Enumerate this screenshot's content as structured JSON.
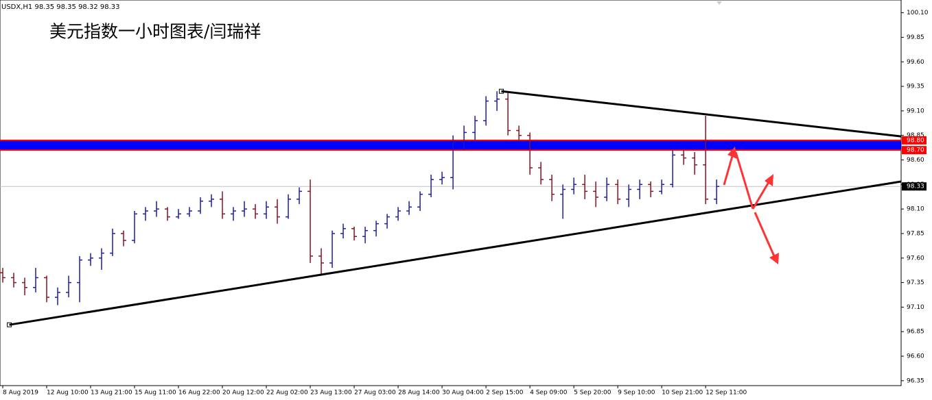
{
  "chart_data": {
    "type": "ohlc",
    "header": "USDX,H1  98.35 98.35 98.32 98.33",
    "title": "美元指数一小时图表/闫瑞祥",
    "categories": [
      "8 Aug 2019",
      null,
      null,
      null,
      "12 Aug 10:00",
      null,
      null,
      null,
      "13 Aug 21:00",
      null,
      null,
      null,
      "15 Aug 11:00",
      null,
      null,
      null,
      "16 Aug 22:00",
      null,
      null,
      null,
      "20 Aug 12:00",
      null,
      null,
      null,
      "22 Aug 02:00",
      null,
      null,
      null,
      "23 Aug 13:00",
      null,
      null,
      null,
      "27 Aug 03:00",
      null,
      null,
      null,
      "28 Aug 14:00",
      null,
      null,
      null,
      "30 Aug 04:00",
      null,
      null,
      null,
      "2 Sep 15:00",
      null,
      null,
      null,
      "4 Sep 09:00",
      null,
      null,
      null,
      "5 Sep 20:00",
      null,
      null,
      null,
      "9 Sep 10:00",
      null,
      null,
      null,
      "10 Sep 21:00",
      null,
      null,
      null,
      "12 Sep 11:00",
      null
    ],
    "open": [
      97.45,
      97.4,
      97.35,
      97.3,
      97.4,
      97.2,
      97.25,
      97.35,
      97.58,
      97.6,
      97.65,
      97.85,
      97.78,
      98.05,
      98.08,
      98.1,
      98.02,
      98.05,
      98.08,
      98.18,
      98.2,
      98.05,
      98.08,
      98.1,
      98.05,
      98.12,
      98.02,
      98.2,
      98.28,
      97.62,
      97.55,
      97.85,
      97.9,
      97.82,
      97.88,
      97.95,
      98.02,
      98.08,
      98.12,
      98.25,
      98.4,
      98.42,
      98.78,
      98.88,
      99.0,
      99.2,
      99.22,
      98.9,
      98.85,
      98.52,
      98.4,
      98.25,
      98.3,
      98.35,
      98.28,
      98.22,
      98.35,
      98.2,
      98.3,
      98.35,
      98.28,
      98.35,
      98.65,
      98.62,
      98.55,
      98.2
    ],
    "high": [
      97.5,
      97.45,
      97.4,
      97.5,
      97.42,
      97.3,
      97.42,
      97.62,
      97.65,
      97.7,
      97.9,
      97.88,
      98.08,
      98.12,
      98.18,
      98.12,
      98.1,
      98.12,
      98.22,
      98.25,
      98.28,
      98.12,
      98.18,
      98.15,
      98.18,
      98.2,
      98.25,
      98.32,
      98.4,
      97.7,
      97.88,
      97.95,
      97.92,
      97.92,
      97.98,
      98.05,
      98.12,
      98.18,
      98.28,
      98.45,
      98.48,
      98.85,
      98.95,
      99.05,
      99.25,
      99.3,
      99.28,
      98.95,
      98.88,
      98.58,
      98.45,
      98.35,
      98.42,
      98.45,
      98.38,
      98.42,
      98.4,
      98.35,
      98.4,
      98.38,
      98.4,
      98.7,
      98.7,
      98.68,
      99.05,
      98.4
    ],
    "low": [
      97.35,
      97.3,
      97.22,
      97.25,
      97.15,
      97.12,
      97.2,
      97.15,
      97.52,
      97.48,
      97.62,
      97.72,
      97.75,
      97.98,
      98.02,
      97.98,
      98.0,
      98.02,
      98.05,
      98.12,
      98.0,
      97.98,
      98.02,
      98.0,
      98.0,
      97.95,
      98.0,
      98.15,
      97.55,
      97.42,
      97.5,
      97.8,
      97.78,
      97.75,
      97.82,
      97.9,
      97.98,
      98.04,
      98.08,
      98.22,
      98.35,
      98.3,
      98.7,
      98.8,
      98.95,
      99.1,
      98.85,
      98.8,
      98.45,
      98.35,
      98.18,
      98.0,
      98.25,
      98.2,
      98.12,
      98.18,
      98.15,
      98.12,
      98.2,
      98.22,
      98.25,
      98.32,
      98.55,
      98.45,
      98.15,
      98.15
    ],
    "close": [
      97.4,
      97.35,
      97.3,
      97.4,
      97.2,
      97.25,
      97.35,
      97.58,
      97.6,
      97.65,
      97.85,
      97.78,
      98.05,
      98.08,
      98.1,
      98.02,
      98.05,
      98.08,
      98.18,
      98.2,
      98.05,
      98.08,
      98.1,
      98.05,
      98.12,
      98.02,
      98.2,
      98.28,
      97.62,
      97.55,
      97.85,
      97.9,
      97.82,
      97.88,
      97.95,
      98.02,
      98.08,
      98.12,
      98.25,
      98.4,
      98.42,
      98.78,
      98.88,
      99.0,
      99.2,
      99.22,
      98.9,
      98.85,
      98.52,
      98.4,
      98.25,
      98.3,
      98.35,
      98.28,
      98.22,
      98.35,
      98.2,
      98.3,
      98.35,
      98.28,
      98.35,
      98.65,
      98.62,
      98.55,
      98.2,
      98.33
    ],
    "up_color": "#1c1ca8",
    "down_color": "#8a1020",
    "xlim": [
      -0.25,
      81.8
    ],
    "ylim": [
      96.3,
      100.23
    ],
    "yticks": [
      96.35,
      {
        "value": 96.6,
        "label": "96.60"
      },
      96.85,
      {
        "value": 97.1,
        "label": "97.10"
      },
      97.35,
      {
        "value": 97.6,
        "label": "97.60"
      },
      97.85,
      {
        "value": 98.1,
        "label": "98.10"
      },
      98.35,
      {
        "value": 98.6,
        "label": "98.60"
      },
      98.85,
      {
        "value": 99.1,
        "label": "99.10"
      },
      99.35,
      {
        "value": 99.6,
        "label": "99.60"
      },
      99.85,
      {
        "value": 100.1,
        "label": "100.10"
      }
    ],
    "band": {
      "levels": [
        {
          "value": 98.8,
          "label": "98.80"
        },
        {
          "value": 98.7,
          "label": "98.70"
        }
      ],
      "fill": "#0000ff",
      "edge": "#ff0000"
    },
    "current": {
      "value": 98.33,
      "label": "98.33"
    },
    "trendlines": [
      {
        "x": [
          45.4,
          81.8
        ],
        "y": [
          99.3,
          98.84
        ]
      },
      {
        "x": [
          0.6,
          81.8
        ],
        "y": [
          96.92,
          98.38
        ]
      }
    ]
  }
}
